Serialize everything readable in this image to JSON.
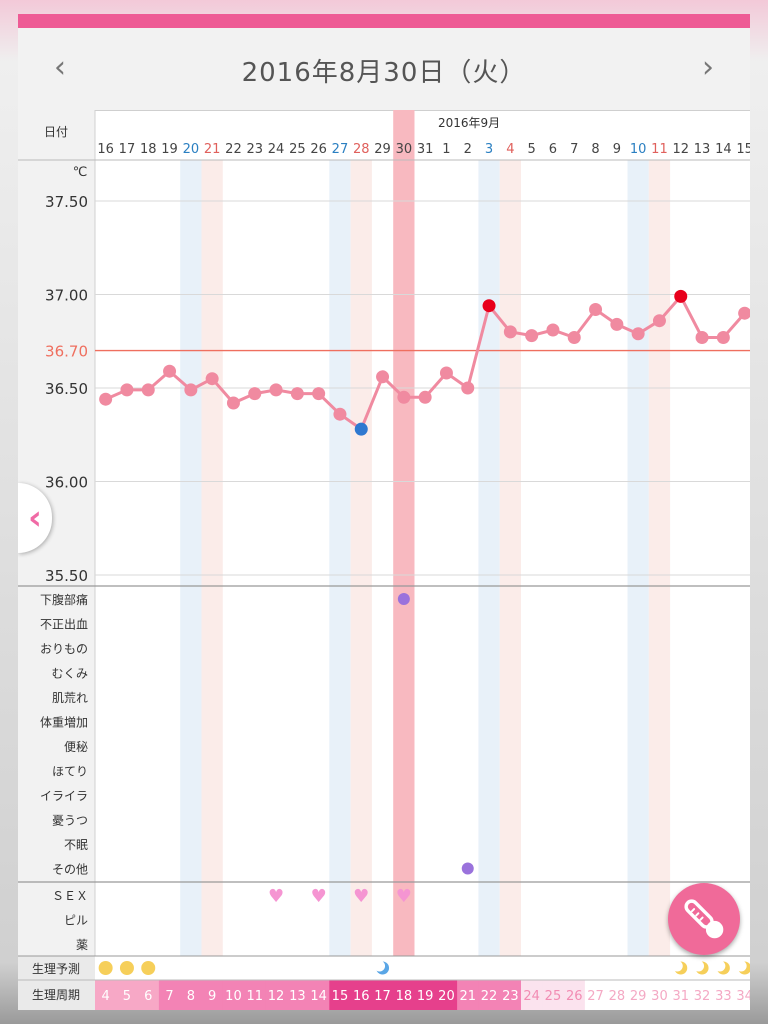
{
  "header": {
    "title": "2016年8月30日（火）",
    "prev_icon": "chevron-left-icon",
    "next_icon": "chevron-right-icon"
  },
  "labels": {
    "date_label": "日付",
    "month_label": "2016年9月",
    "unit": "℃",
    "target_temp": "36.70"
  },
  "days": [
    {
      "d": "16",
      "t": ""
    },
    {
      "d": "17",
      "t": ""
    },
    {
      "d": "18",
      "t": ""
    },
    {
      "d": "19",
      "t": ""
    },
    {
      "d": "20",
      "t": "sat"
    },
    {
      "d": "21",
      "t": "sun"
    },
    {
      "d": "22",
      "t": ""
    },
    {
      "d": "23",
      "t": ""
    },
    {
      "d": "24",
      "t": ""
    },
    {
      "d": "25",
      "t": ""
    },
    {
      "d": "26",
      "t": ""
    },
    {
      "d": "27",
      "t": "sat"
    },
    {
      "d": "28",
      "t": "sun"
    },
    {
      "d": "29",
      "t": ""
    },
    {
      "d": "30",
      "t": "selected"
    },
    {
      "d": "31",
      "t": ""
    },
    {
      "d": "1",
      "t": ""
    },
    {
      "d": "2",
      "t": ""
    },
    {
      "d": "3",
      "t": "sat"
    },
    {
      "d": "4",
      "t": "sun"
    },
    {
      "d": "5",
      "t": ""
    },
    {
      "d": "6",
      "t": ""
    },
    {
      "d": "7",
      "t": ""
    },
    {
      "d": "8",
      "t": ""
    },
    {
      "d": "9",
      "t": ""
    },
    {
      "d": "10",
      "t": "sat"
    },
    {
      "d": "11",
      "t": "sun"
    },
    {
      "d": "12",
      "t": ""
    },
    {
      "d": "13",
      "t": ""
    },
    {
      "d": "14",
      "t": ""
    },
    {
      "d": "15",
      "t": ""
    }
  ],
  "temperature": {
    "ticks": [
      "37.50",
      "37.00",
      "36.50",
      "36.00",
      "35.50"
    ],
    "tick_values": [
      37.5,
      37.0,
      36.5,
      36.0,
      35.5
    ],
    "target_value": 36.7,
    "values": [
      36.44,
      36.49,
      36.49,
      36.59,
      36.49,
      36.55,
      36.42,
      36.47,
      36.49,
      36.47,
      36.47,
      36.36,
      36.28,
      36.56,
      36.45,
      36.45,
      36.58,
      36.5,
      36.94,
      36.8,
      36.78,
      36.81,
      36.77,
      36.92,
      36.84,
      36.79,
      36.86,
      36.99,
      36.77,
      36.77,
      36.9
    ],
    "low_marker_index": 12,
    "high_marker_indices": [
      18,
      27
    ]
  },
  "symptoms": {
    "labels": [
      "下腹部痛",
      "不正出血",
      "おりもの",
      "むくみ",
      "肌荒れ",
      "体重増加",
      "便秘",
      "ほてり",
      "イライラ",
      "憂うつ",
      "不眠",
      "その他"
    ],
    "marks": [
      {
        "row": 0,
        "day": 14
      },
      {
        "row": 11,
        "day": 17
      }
    ]
  },
  "events": {
    "labels": [
      "ＳＥＸ",
      "ピル",
      "薬"
    ],
    "sex_days": [
      8,
      10,
      12,
      14
    ]
  },
  "prediction": {
    "label": "生理予測",
    "period_days": [
      0,
      1,
      2
    ],
    "ovulation_day": 13,
    "pms_days": [
      27,
      28,
      29,
      30
    ]
  },
  "cycle": {
    "label": "生理周期",
    "numbers": [
      "4",
      "5",
      "6",
      "7",
      "8",
      "9",
      "10",
      "11",
      "12",
      "13",
      "14",
      "15",
      "16",
      "17",
      "18",
      "19",
      "20",
      "21",
      "22",
      "23",
      "24",
      "25",
      "26",
      "27",
      "28",
      "29",
      "30",
      "31",
      "32",
      "33",
      "34"
    ]
  },
  "colors": {
    "accent": "#ee5b95",
    "line": "#f08aa0",
    "low_marker": "#2f78d0",
    "high_marker": "#e8001c",
    "target_line": "#ef6f5f",
    "sat_text": "#2a7fc1",
    "sun_text": "#e0605c",
    "sat_band": "#e8f1f9",
    "sun_band": "#fbece9",
    "selected_band": "#f8b9c0",
    "symptom_dot": "#9a72dc",
    "heart": "#f595d2",
    "period_dot": "#f6cf5a"
  },
  "icons": {
    "side_handle": "chevron-left-icon",
    "fab": "thermometer-icon"
  }
}
